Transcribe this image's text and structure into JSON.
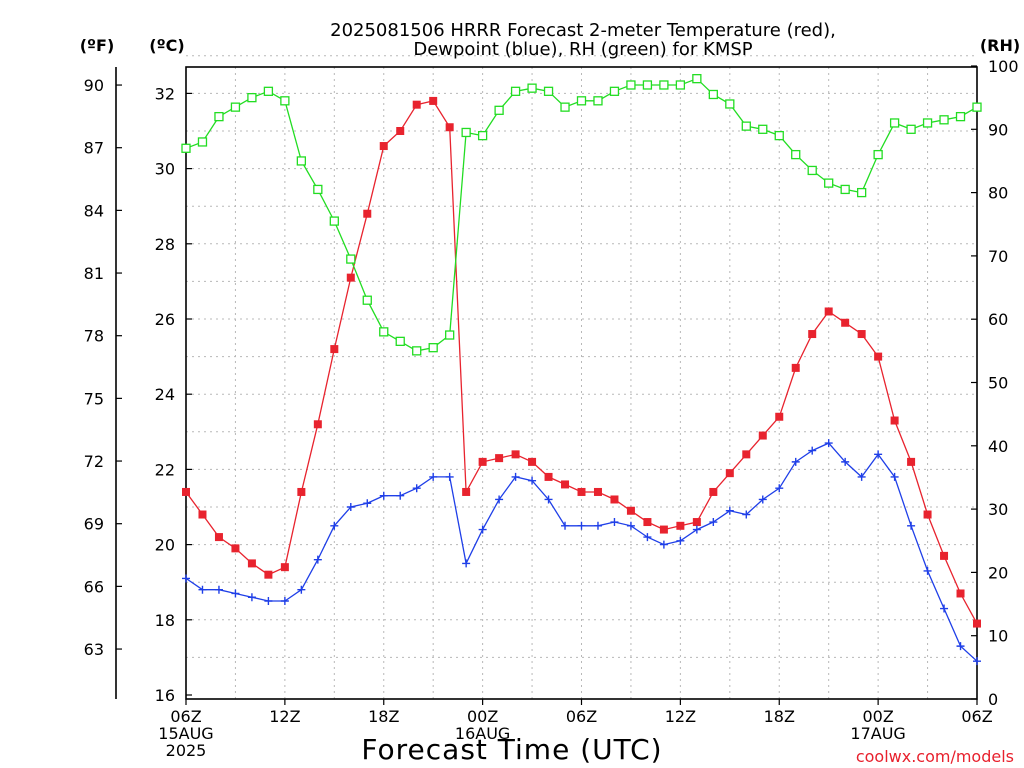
{
  "chart_data": {
    "type": "line",
    "title_lines": [
      "2025081506 HRRR Forecast 2-meter Temperature (red),",
      "Dewpoint (blue), RH (green) for KMSP"
    ],
    "xlabel": "Forecast Time (UTC)",
    "credit": "coolwx.com/models",
    "units": {
      "fahrenheit": "(ºF)",
      "celsius": "(ºC)",
      "rh": "(RH)"
    },
    "x_ticks": [
      {
        "h": 0,
        "lines": [
          "06Z",
          "15AUG",
          "2025"
        ]
      },
      {
        "h": 6,
        "lines": [
          "12Z"
        ]
      },
      {
        "h": 12,
        "lines": [
          "18Z"
        ]
      },
      {
        "h": 18,
        "lines": [
          "00Z",
          "16AUG"
        ]
      },
      {
        "h": 24,
        "lines": [
          "06Z"
        ]
      },
      {
        "h": 30,
        "lines": [
          "12Z"
        ]
      },
      {
        "h": 36,
        "lines": [
          "18Z"
        ]
      },
      {
        "h": 42,
        "lines": [
          "00Z",
          "17AUG"
        ]
      },
      {
        "h": 48,
        "lines": [
          "06Z"
        ]
      }
    ],
    "xlim": [
      0,
      48
    ],
    "ylim_c": [
      16,
      33.1
    ],
    "y_ticks_c": [
      16,
      18,
      20,
      22,
      24,
      26,
      28,
      30,
      32
    ],
    "y_ticks_f": [
      63,
      66,
      69,
      72,
      75,
      78,
      81,
      84,
      87,
      90
    ],
    "ylim_rh": [
      0,
      100
    ],
    "y_ticks_rh": [
      0,
      10,
      20,
      30,
      40,
      50,
      60,
      70,
      80,
      90,
      100
    ],
    "series": [
      {
        "name": "Temperature",
        "axis": "c",
        "color": "#e8232e",
        "marker": "filled-square",
        "values": [
          21.4,
          20.8,
          20.2,
          19.9,
          19.5,
          19.2,
          19.4,
          21.4,
          23.2,
          25.2,
          27.1,
          28.8,
          30.6,
          31.0,
          31.7,
          31.8,
          31.1,
          21.4,
          22.2,
          22.3,
          22.4,
          22.2,
          21.8,
          21.6,
          21.4,
          21.4,
          21.2,
          20.9,
          20.6,
          20.4,
          20.5,
          20.6,
          21.4,
          21.9,
          22.4,
          22.9,
          23.4,
          24.7,
          25.6,
          26.2,
          25.9,
          25.6,
          25.0,
          23.3,
          22.2,
          20.8,
          19.7,
          18.7,
          17.9
        ]
      },
      {
        "name": "Dewpoint",
        "axis": "c",
        "color": "#1f3fe8",
        "marker": "plus",
        "values": [
          19.1,
          18.8,
          18.8,
          18.7,
          18.6,
          18.5,
          18.5,
          18.8,
          19.6,
          20.5,
          21.0,
          21.1,
          21.3,
          21.3,
          21.5,
          21.8,
          21.8,
          19.5,
          20.4,
          21.2,
          21.8,
          21.7,
          21.2,
          20.5,
          20.5,
          20.5,
          20.6,
          20.5,
          20.2,
          20.0,
          20.1,
          20.4,
          20.6,
          20.9,
          20.8,
          21.2,
          21.5,
          22.2,
          22.5,
          22.7,
          22.2,
          21.8,
          22.4,
          21.8,
          20.5,
          19.3,
          18.3,
          17.3,
          16.9
        ]
      },
      {
        "name": "RH",
        "axis": "rh",
        "color": "#22dd22",
        "marker": "open-square",
        "values": [
          87,
          88,
          92,
          93.5,
          95,
          96,
          94.5,
          85,
          80.5,
          75.5,
          69.5,
          63,
          58,
          56.5,
          55,
          55.5,
          57.5,
          89.5,
          89,
          93,
          96,
          96.5,
          96,
          93.5,
          94.5,
          94.5,
          96,
          97,
          97,
          97,
          97,
          98,
          95.5,
          94,
          90.5,
          90,
          89,
          86,
          83.5,
          81.5,
          80.5,
          80,
          86,
          91,
          90,
          91,
          91.5,
          92,
          93.5
        ]
      }
    ]
  }
}
